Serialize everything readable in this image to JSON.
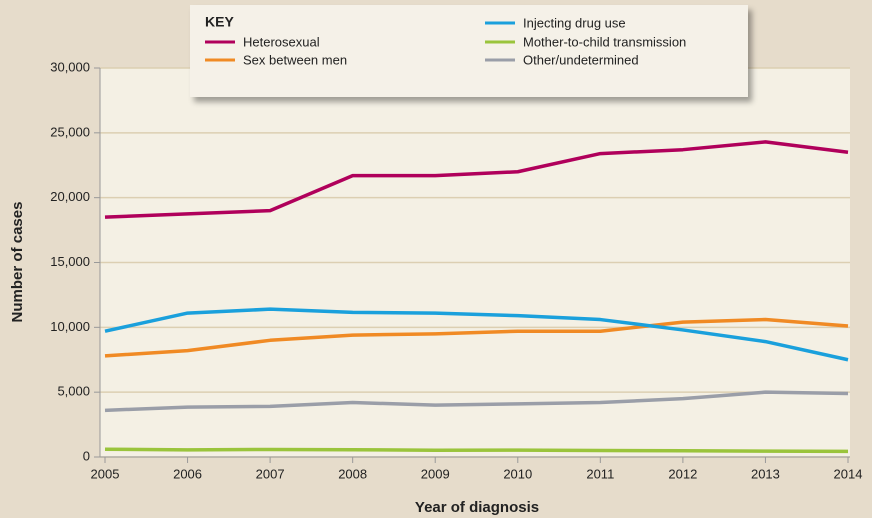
{
  "chart_data": {
    "type": "line",
    "x_label": "Year of diagnosis",
    "y_label": "Number of cases",
    "legend_title": "KEY",
    "x": [
      2005,
      2006,
      2007,
      2008,
      2009,
      2010,
      2011,
      2012,
      2013,
      2014
    ],
    "xlim": [
      2005,
      2014
    ],
    "xticks": [
      2005,
      2006,
      2007,
      2008,
      2009,
      2010,
      2011,
      2012,
      2013,
      2014
    ],
    "ylim": [
      0,
      30000
    ],
    "yticks": [
      0,
      {
        "value": 5000,
        "label": "5,000"
      },
      {
        "value": 10000,
        "label": "10,000"
      },
      {
        "value": 15000,
        "label": "15,000"
      },
      {
        "value": 20000,
        "label": "20,000"
      },
      {
        "value": 25000,
        "label": "25,000"
      },
      {
        "value": 30000,
        "label": "30,000"
      }
    ],
    "grid": true,
    "series": [
      {
        "name": "Heterosexual",
        "color": "#b0005b",
        "values": [
          18500,
          18750,
          19000,
          21700,
          21700,
          22000,
          23400,
          23700,
          24300,
          23500
        ]
      },
      {
        "name": "Sex between men",
        "color": "#f08a24",
        "values": [
          7800,
          8200,
          9000,
          9400,
          9500,
          9700,
          9700,
          10400,
          10600,
          10100
        ]
      },
      {
        "name": "Injecting drug use",
        "color": "#1aa0dc",
        "values": [
          9700,
          11100,
          11400,
          11150,
          11100,
          10900,
          10600,
          9800,
          8900,
          7500
        ]
      },
      {
        "name": "Mother-to-child transmission",
        "color": "#9ac43c",
        "values": [
          600,
          550,
          580,
          560,
          520,
          530,
          500,
          480,
          450,
          430
        ]
      },
      {
        "name": "Other/undetermined",
        "color": "#9a9ea8",
        "values": [
          3600,
          3850,
          3900,
          4200,
          4000,
          4100,
          4200,
          4500,
          5000,
          4900
        ]
      }
    ]
  }
}
